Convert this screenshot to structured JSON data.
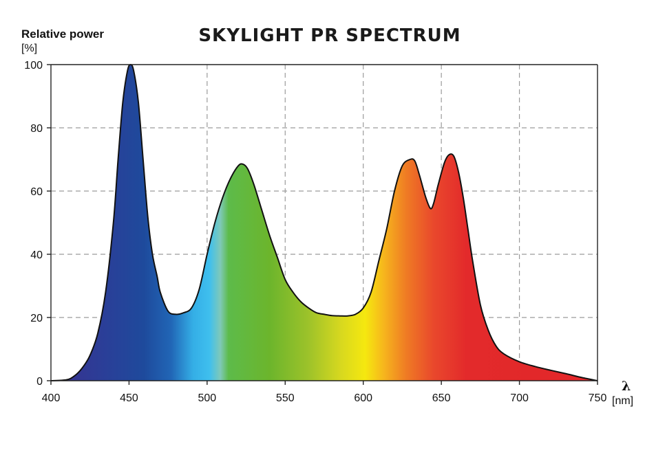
{
  "chart_data": {
    "type": "area",
    "title": "SKYLIGHT PR SPECTRUM",
    "ylabel": "Relative power",
    "ylabel_unit": "[%]",
    "xlabel_symbol": "λ",
    "xlabel_unit": "[nm]",
    "xlim": [
      400,
      750
    ],
    "ylim": [
      0,
      100
    ],
    "x_ticks": [
      400,
      450,
      500,
      550,
      600,
      650,
      700,
      750
    ],
    "y_ticks": [
      0,
      20,
      40,
      60,
      80,
      100
    ],
    "grid": true,
    "fill": "visible-spectrum color gradient",
    "series": [
      {
        "x": [
          400,
          410,
          415,
          420,
          425,
          430,
          435,
          440,
          443,
          446,
          449,
          451,
          453,
          456,
          459,
          462,
          465,
          468,
          470,
          475,
          480,
          485,
          490,
          495,
          500,
          505,
          510,
          515,
          520,
          523,
          526,
          530,
          535,
          540,
          545,
          550,
          555,
          560,
          565,
          570,
          575,
          580,
          585,
          590,
          595,
          600,
          605,
          610,
          615,
          620,
          625,
          630,
          633,
          636,
          640,
          643,
          645,
          648,
          652,
          655,
          658,
          661,
          664,
          667,
          670,
          675,
          680,
          685,
          690,
          700,
          710,
          720,
          730,
          740,
          750
        ],
        "y": [
          0,
          0.3,
          1.5,
          4,
          8,
          15,
          28,
          50,
          70,
          88,
          98,
          100,
          98,
          88,
          70,
          52,
          40,
          33,
          28,
          22,
          21,
          21.5,
          23,
          29,
          40,
          50,
          58,
          64,
          68,
          68.5,
          67,
          62,
          54,
          46,
          39,
          32,
          28,
          25,
          23,
          21.5,
          21,
          20.6,
          20.5,
          20.5,
          21,
          23,
          28,
          38,
          48,
          60,
          68,
          70,
          69.5,
          65,
          58,
          54.5,
          56,
          62,
          69,
          71.5,
          71,
          66,
          58,
          48,
          38,
          24,
          16,
          11,
          8.5,
          6,
          4.5,
          3.3,
          2.2,
          1,
          0
        ]
      }
    ]
  }
}
